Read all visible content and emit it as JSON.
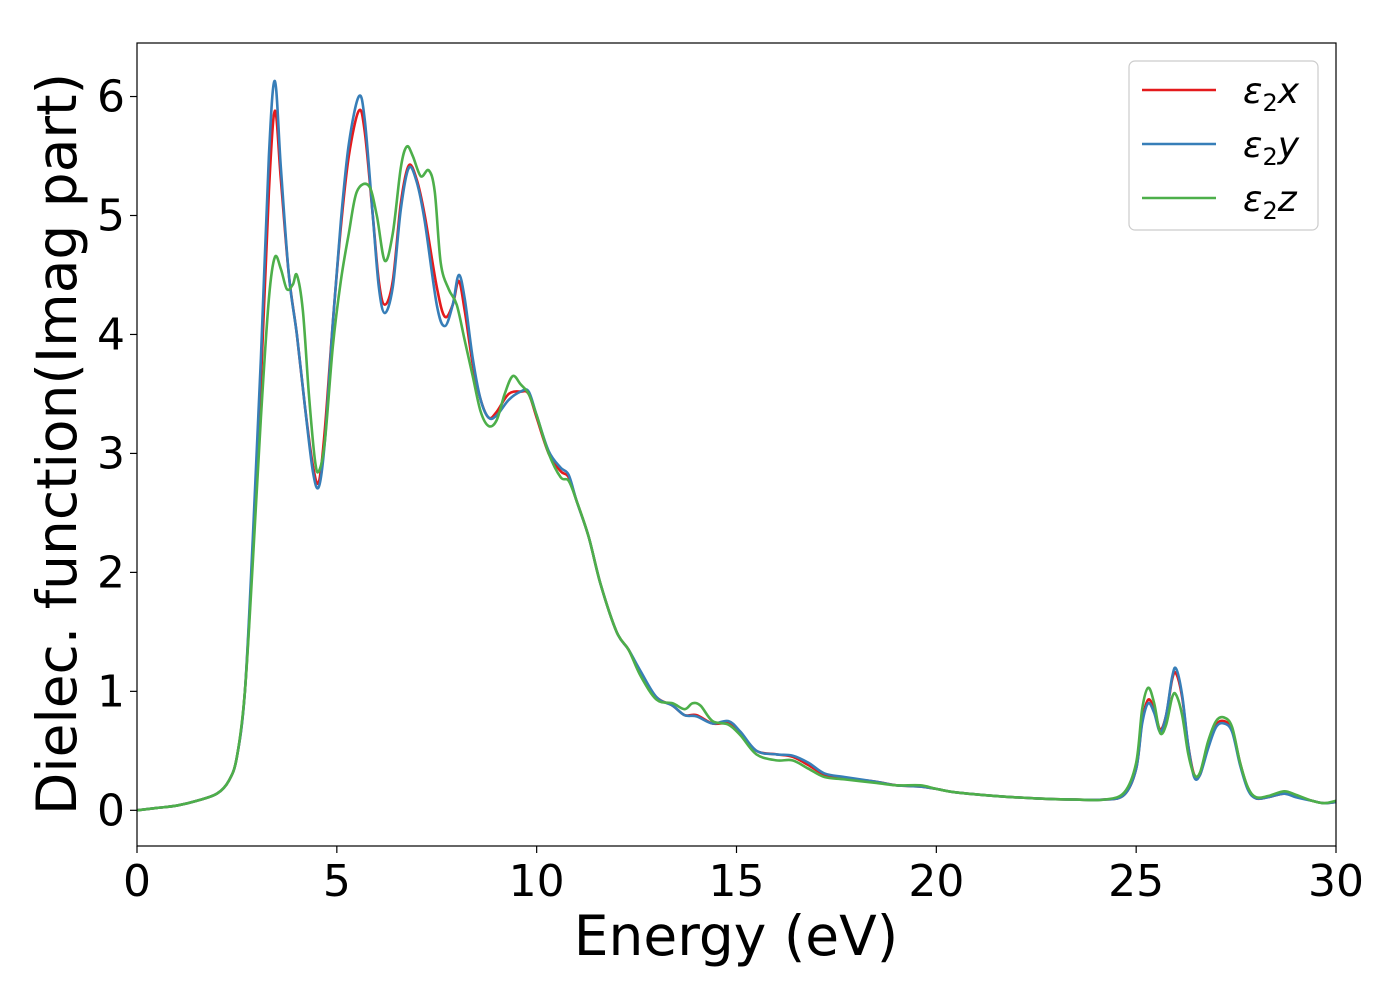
{
  "chart_data": {
    "type": "line",
    "xlabel": "Energy (eV)",
    "ylabel": "Dielec. function(Imag part)",
    "xlim": [
      0,
      30
    ],
    "ylim": [
      -0.3,
      6.45
    ],
    "xticks": [
      0,
      5,
      10,
      15,
      20,
      25,
      30
    ],
    "yticks": [
      0,
      1,
      2,
      3,
      4,
      5,
      6
    ],
    "grid": false,
    "legend_position": "top-right",
    "series": [
      {
        "name": "ε₂x",
        "legend_main": "ε",
        "legend_sub": "2",
        "legend_var": "x",
        "color": "#e41a1c",
        "points": [
          [
            0,
            0.0
          ],
          [
            0.5,
            0.02
          ],
          [
            1.0,
            0.04
          ],
          [
            1.5,
            0.08
          ],
          [
            2.0,
            0.14
          ],
          [
            2.3,
            0.25
          ],
          [
            2.5,
            0.45
          ],
          [
            2.7,
            1.0
          ],
          [
            2.9,
            2.2
          ],
          [
            3.1,
            3.6
          ],
          [
            3.3,
            5.2
          ],
          [
            3.45,
            5.88
          ],
          [
            3.6,
            5.3
          ],
          [
            3.8,
            4.5
          ],
          [
            4.0,
            4.0
          ],
          [
            4.2,
            3.4
          ],
          [
            4.4,
            2.9
          ],
          [
            4.55,
            2.76
          ],
          [
            4.7,
            3.2
          ],
          [
            4.9,
            4.1
          ],
          [
            5.1,
            4.9
          ],
          [
            5.3,
            5.5
          ],
          [
            5.55,
            5.88
          ],
          [
            5.7,
            5.7
          ],
          [
            5.9,
            5.0
          ],
          [
            6.05,
            4.45
          ],
          [
            6.2,
            4.25
          ],
          [
            6.4,
            4.45
          ],
          [
            6.6,
            5.1
          ],
          [
            6.8,
            5.42
          ],
          [
            7.0,
            5.3
          ],
          [
            7.2,
            5.0
          ],
          [
            7.5,
            4.4
          ],
          [
            7.7,
            4.15
          ],
          [
            7.9,
            4.25
          ],
          [
            8.05,
            4.45
          ],
          [
            8.2,
            4.2
          ],
          [
            8.4,
            3.75
          ],
          [
            8.6,
            3.45
          ],
          [
            8.8,
            3.3
          ],
          [
            9.0,
            3.35
          ],
          [
            9.3,
            3.5
          ],
          [
            9.6,
            3.52
          ],
          [
            9.8,
            3.5
          ],
          [
            10.0,
            3.3
          ],
          [
            10.3,
            3.0
          ],
          [
            10.6,
            2.85
          ],
          [
            10.8,
            2.8
          ],
          [
            11.0,
            2.6
          ],
          [
            11.3,
            2.3
          ],
          [
            11.6,
            1.9
          ],
          [
            12.0,
            1.5
          ],
          [
            12.3,
            1.35
          ],
          [
            12.6,
            1.15
          ],
          [
            13.0,
            0.95
          ],
          [
            13.4,
            0.88
          ],
          [
            13.7,
            0.8
          ],
          [
            14.0,
            0.8
          ],
          [
            14.4,
            0.73
          ],
          [
            14.8,
            0.73
          ],
          [
            15.1,
            0.65
          ],
          [
            15.5,
            0.5
          ],
          [
            16.0,
            0.47
          ],
          [
            16.4,
            0.45
          ],
          [
            16.8,
            0.38
          ],
          [
            17.2,
            0.3
          ],
          [
            17.7,
            0.27
          ],
          [
            18.5,
            0.24
          ],
          [
            19.0,
            0.21
          ],
          [
            19.6,
            0.2
          ],
          [
            20.0,
            0.18
          ],
          [
            20.5,
            0.15
          ],
          [
            21.5,
            0.12
          ],
          [
            22.5,
            0.1
          ],
          [
            23.5,
            0.09
          ],
          [
            24.2,
            0.09
          ],
          [
            24.7,
            0.13
          ],
          [
            25.0,
            0.35
          ],
          [
            25.15,
            0.75
          ],
          [
            25.3,
            0.93
          ],
          [
            25.45,
            0.85
          ],
          [
            25.6,
            0.68
          ],
          [
            25.75,
            0.8
          ],
          [
            25.9,
            1.1
          ],
          [
            26.0,
            1.15
          ],
          [
            26.15,
            0.95
          ],
          [
            26.3,
            0.55
          ],
          [
            26.45,
            0.3
          ],
          [
            26.6,
            0.3
          ],
          [
            26.8,
            0.55
          ],
          [
            27.0,
            0.72
          ],
          [
            27.2,
            0.75
          ],
          [
            27.4,
            0.68
          ],
          [
            27.6,
            0.4
          ],
          [
            27.8,
            0.18
          ],
          [
            28.0,
            0.1
          ],
          [
            28.3,
            0.11
          ],
          [
            28.7,
            0.14
          ],
          [
            29.0,
            0.12
          ],
          [
            29.4,
            0.08
          ],
          [
            29.7,
            0.06
          ],
          [
            30.0,
            0.07
          ]
        ]
      },
      {
        "name": "ε₂y",
        "legend_main": "ε",
        "legend_sub": "2",
        "legend_var": "y",
        "color": "#377eb8",
        "points": [
          [
            0,
            0.0
          ],
          [
            0.5,
            0.02
          ],
          [
            1.0,
            0.04
          ],
          [
            1.5,
            0.08
          ],
          [
            2.0,
            0.14
          ],
          [
            2.3,
            0.25
          ],
          [
            2.5,
            0.45
          ],
          [
            2.7,
            1.0
          ],
          [
            2.9,
            2.3
          ],
          [
            3.1,
            3.8
          ],
          [
            3.3,
            5.5
          ],
          [
            3.45,
            6.13
          ],
          [
            3.6,
            5.4
          ],
          [
            3.8,
            4.5
          ],
          [
            4.0,
            4.0
          ],
          [
            4.2,
            3.4
          ],
          [
            4.4,
            2.85
          ],
          [
            4.55,
            2.72
          ],
          [
            4.7,
            3.1
          ],
          [
            4.9,
            4.1
          ],
          [
            5.1,
            4.95
          ],
          [
            5.3,
            5.6
          ],
          [
            5.55,
            6.0
          ],
          [
            5.7,
            5.8
          ],
          [
            5.9,
            5.0
          ],
          [
            6.05,
            4.4
          ],
          [
            6.2,
            4.18
          ],
          [
            6.4,
            4.4
          ],
          [
            6.6,
            5.05
          ],
          [
            6.8,
            5.4
          ],
          [
            7.0,
            5.28
          ],
          [
            7.2,
            4.95
          ],
          [
            7.5,
            4.25
          ],
          [
            7.7,
            4.07
          ],
          [
            7.9,
            4.25
          ],
          [
            8.05,
            4.5
          ],
          [
            8.2,
            4.3
          ],
          [
            8.4,
            3.8
          ],
          [
            8.6,
            3.45
          ],
          [
            8.8,
            3.3
          ],
          [
            9.0,
            3.32
          ],
          [
            9.3,
            3.45
          ],
          [
            9.6,
            3.52
          ],
          [
            9.8,
            3.52
          ],
          [
            10.0,
            3.32
          ],
          [
            10.3,
            3.02
          ],
          [
            10.6,
            2.88
          ],
          [
            10.8,
            2.82
          ],
          [
            11.0,
            2.6
          ],
          [
            11.3,
            2.3
          ],
          [
            11.6,
            1.9
          ],
          [
            12.0,
            1.5
          ],
          [
            12.3,
            1.35
          ],
          [
            12.6,
            1.17
          ],
          [
            13.0,
            0.95
          ],
          [
            13.4,
            0.88
          ],
          [
            13.7,
            0.8
          ],
          [
            14.0,
            0.79
          ],
          [
            14.4,
            0.73
          ],
          [
            14.8,
            0.75
          ],
          [
            15.1,
            0.66
          ],
          [
            15.5,
            0.5
          ],
          [
            16.0,
            0.47
          ],
          [
            16.4,
            0.46
          ],
          [
            16.8,
            0.4
          ],
          [
            17.2,
            0.31
          ],
          [
            17.7,
            0.28
          ],
          [
            18.5,
            0.24
          ],
          [
            19.0,
            0.21
          ],
          [
            19.6,
            0.2
          ],
          [
            20.0,
            0.18
          ],
          [
            20.5,
            0.15
          ],
          [
            21.5,
            0.12
          ],
          [
            22.5,
            0.1
          ],
          [
            23.5,
            0.09
          ],
          [
            24.2,
            0.09
          ],
          [
            24.7,
            0.13
          ],
          [
            25.0,
            0.35
          ],
          [
            25.15,
            0.73
          ],
          [
            25.3,
            0.9
          ],
          [
            25.45,
            0.82
          ],
          [
            25.6,
            0.66
          ],
          [
            25.75,
            0.8
          ],
          [
            25.9,
            1.12
          ],
          [
            26.0,
            1.19
          ],
          [
            26.15,
            0.97
          ],
          [
            26.3,
            0.55
          ],
          [
            26.45,
            0.28
          ],
          [
            26.6,
            0.3
          ],
          [
            26.8,
            0.52
          ],
          [
            27.0,
            0.7
          ],
          [
            27.2,
            0.73
          ],
          [
            27.4,
            0.66
          ],
          [
            27.6,
            0.38
          ],
          [
            27.8,
            0.17
          ],
          [
            28.0,
            0.1
          ],
          [
            28.3,
            0.11
          ],
          [
            28.7,
            0.14
          ],
          [
            29.0,
            0.11
          ],
          [
            29.4,
            0.08
          ],
          [
            29.7,
            0.06
          ],
          [
            30.0,
            0.07
          ]
        ]
      },
      {
        "name": "ε₂z",
        "legend_main": "ε",
        "legend_sub": "2",
        "legend_var": "z",
        "color": "#4daf4a",
        "points": [
          [
            0,
            0.0
          ],
          [
            0.5,
            0.02
          ],
          [
            1.0,
            0.04
          ],
          [
            1.5,
            0.08
          ],
          [
            2.0,
            0.14
          ],
          [
            2.3,
            0.25
          ],
          [
            2.5,
            0.45
          ],
          [
            2.7,
            1.0
          ],
          [
            2.9,
            2.1
          ],
          [
            3.1,
            3.3
          ],
          [
            3.3,
            4.3
          ],
          [
            3.45,
            4.65
          ],
          [
            3.6,
            4.55
          ],
          [
            3.75,
            4.38
          ],
          [
            3.9,
            4.42
          ],
          [
            4.0,
            4.5
          ],
          [
            4.15,
            4.2
          ],
          [
            4.3,
            3.5
          ],
          [
            4.45,
            2.95
          ],
          [
            4.55,
            2.85
          ],
          [
            4.7,
            3.1
          ],
          [
            4.9,
            3.9
          ],
          [
            5.1,
            4.45
          ],
          [
            5.3,
            4.85
          ],
          [
            5.5,
            5.2
          ],
          [
            5.8,
            5.25
          ],
          [
            6.0,
            5.0
          ],
          [
            6.2,
            4.62
          ],
          [
            6.4,
            4.85
          ],
          [
            6.6,
            5.4
          ],
          [
            6.75,
            5.58
          ],
          [
            6.9,
            5.5
          ],
          [
            7.1,
            5.33
          ],
          [
            7.3,
            5.38
          ],
          [
            7.45,
            5.2
          ],
          [
            7.6,
            4.6
          ],
          [
            7.8,
            4.38
          ],
          [
            8.0,
            4.25
          ],
          [
            8.2,
            3.95
          ],
          [
            8.4,
            3.65
          ],
          [
            8.6,
            3.35
          ],
          [
            8.8,
            3.23
          ],
          [
            9.0,
            3.28
          ],
          [
            9.2,
            3.5
          ],
          [
            9.4,
            3.65
          ],
          [
            9.6,
            3.58
          ],
          [
            9.8,
            3.5
          ],
          [
            10.0,
            3.32
          ],
          [
            10.3,
            3.0
          ],
          [
            10.6,
            2.8
          ],
          [
            10.8,
            2.77
          ],
          [
            11.0,
            2.6
          ],
          [
            11.3,
            2.3
          ],
          [
            11.6,
            1.9
          ],
          [
            12.0,
            1.5
          ],
          [
            12.3,
            1.35
          ],
          [
            12.6,
            1.13
          ],
          [
            13.0,
            0.93
          ],
          [
            13.4,
            0.9
          ],
          [
            13.7,
            0.85
          ],
          [
            13.9,
            0.9
          ],
          [
            14.1,
            0.88
          ],
          [
            14.4,
            0.75
          ],
          [
            14.8,
            0.72
          ],
          [
            15.1,
            0.63
          ],
          [
            15.5,
            0.47
          ],
          [
            16.0,
            0.42
          ],
          [
            16.4,
            0.42
          ],
          [
            16.8,
            0.35
          ],
          [
            17.2,
            0.28
          ],
          [
            17.7,
            0.26
          ],
          [
            18.5,
            0.23
          ],
          [
            19.0,
            0.21
          ],
          [
            19.6,
            0.21
          ],
          [
            20.0,
            0.18
          ],
          [
            20.5,
            0.15
          ],
          [
            21.5,
            0.12
          ],
          [
            22.5,
            0.1
          ],
          [
            23.5,
            0.09
          ],
          [
            24.2,
            0.09
          ],
          [
            24.7,
            0.15
          ],
          [
            25.0,
            0.4
          ],
          [
            25.15,
            0.85
          ],
          [
            25.3,
            1.03
          ],
          [
            25.45,
            0.9
          ],
          [
            25.6,
            0.65
          ],
          [
            25.75,
            0.72
          ],
          [
            25.9,
            0.95
          ],
          [
            26.0,
            0.97
          ],
          [
            26.15,
            0.8
          ],
          [
            26.3,
            0.48
          ],
          [
            26.45,
            0.3
          ],
          [
            26.6,
            0.32
          ],
          [
            26.8,
            0.58
          ],
          [
            27.0,
            0.75
          ],
          [
            27.2,
            0.78
          ],
          [
            27.4,
            0.7
          ],
          [
            27.6,
            0.4
          ],
          [
            27.8,
            0.19
          ],
          [
            28.0,
            0.11
          ],
          [
            28.3,
            0.12
          ],
          [
            28.7,
            0.16
          ],
          [
            29.0,
            0.13
          ],
          [
            29.4,
            0.08
          ],
          [
            29.7,
            0.06
          ],
          [
            30.0,
            0.08
          ]
        ]
      }
    ]
  }
}
